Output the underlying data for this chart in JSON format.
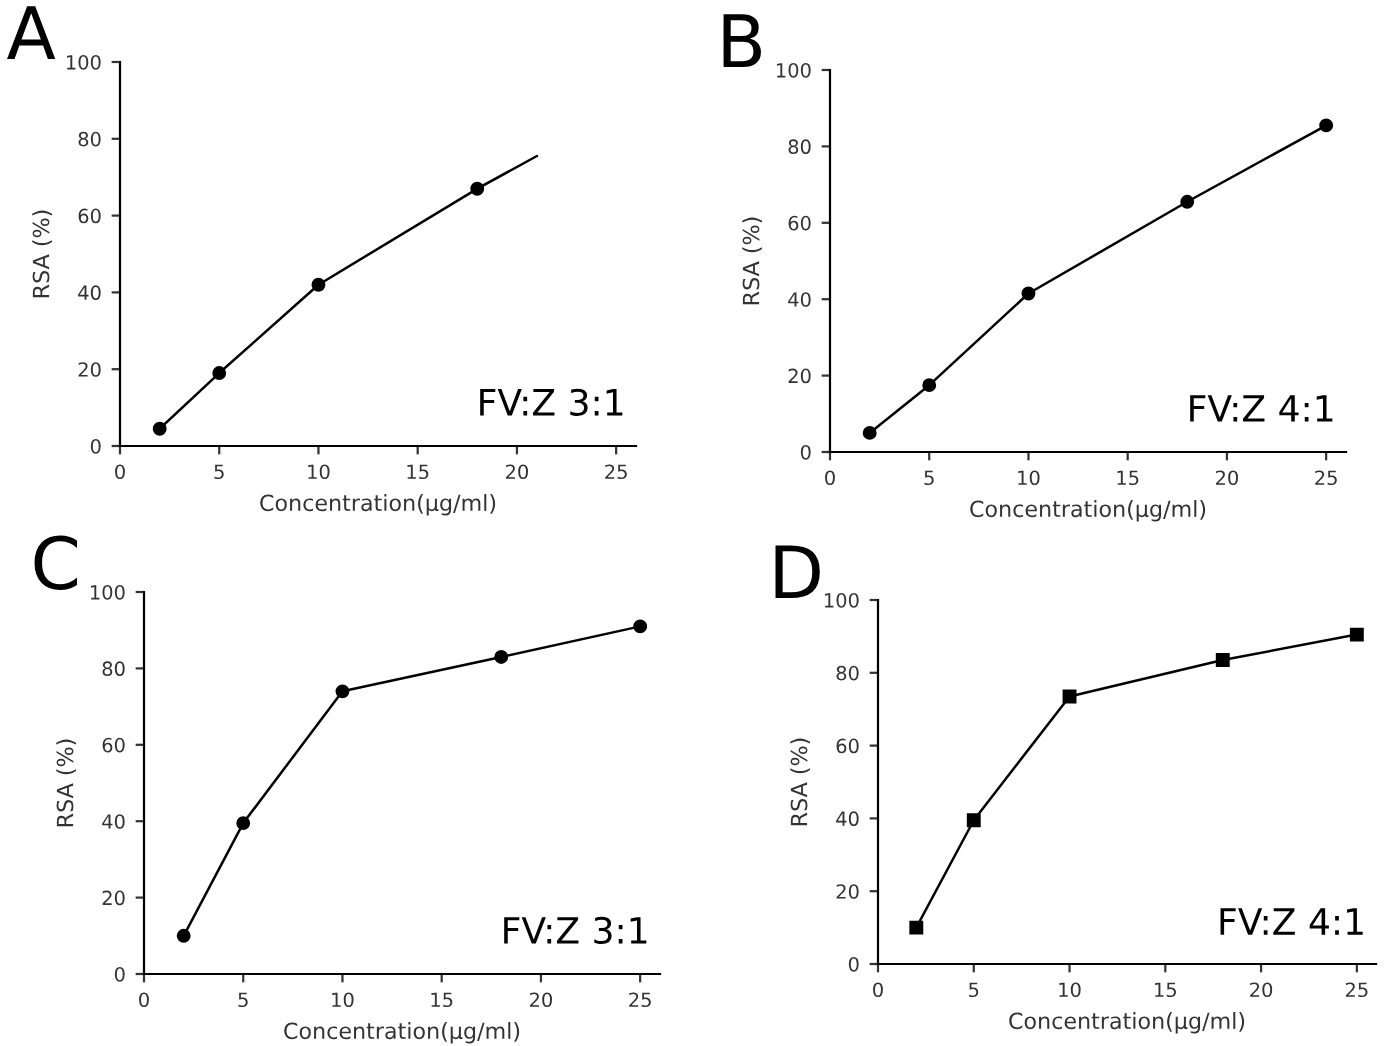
{
  "chart_data": [
    {
      "type": "line",
      "title": "A",
      "xlabel": "Concentration(μg/ml)",
      "ylabel": "RSA (%)",
      "annotations": [
        "FV:Z 3:1"
      ],
      "xlim": [
        0,
        26
      ],
      "ylim": [
        0,
        100
      ],
      "xticks": [
        0,
        5,
        10,
        15,
        20,
        25
      ],
      "yticks": [
        0,
        20,
        40,
        60,
        80,
        100
      ],
      "marker": "circle",
      "grid": false,
      "series": [
        {
          "color": "#000000",
          "x": [
            2,
            5,
            10,
            18
          ],
          "values": [
            4.5,
            19,
            42,
            67
          ]
        },
        {
          "color": "#000000",
          "x": [
            18,
            21
          ],
          "values": [
            67,
            75.5
          ],
          "marker": "none"
        }
      ]
    },
    {
      "type": "line",
      "title": "B",
      "xlabel": "Concentration(μg/ml)",
      "ylabel": "RSA (%)",
      "annotations": [
        "FV:Z 4:1"
      ],
      "xlim": [
        0,
        26
      ],
      "ylim": [
        0,
        100
      ],
      "xticks": [
        0,
        5,
        10,
        15,
        20,
        25
      ],
      "yticks": [
        0,
        20,
        40,
        60,
        80,
        100
      ],
      "marker": "circle",
      "grid": false,
      "series": [
        {
          "color": "#000000",
          "x": [
            2,
            5,
            10,
            18,
            25
          ],
          "values": [
            5,
            17.5,
            41.5,
            65.5,
            85.5
          ]
        }
      ]
    },
    {
      "type": "line",
      "title": "C",
      "xlabel": "Concentration(μg/ml)",
      "ylabel": "RSA (%)",
      "annotations": [
        "FV:Z 3:1"
      ],
      "xlim": [
        0,
        26
      ],
      "ylim": [
        0,
        100
      ],
      "xticks": [
        0,
        5,
        10,
        15,
        20,
        25
      ],
      "yticks": [
        0,
        20,
        40,
        60,
        80,
        100
      ],
      "marker": "circle",
      "grid": false,
      "series": [
        {
          "color": "#000000",
          "x": [
            2,
            5,
            10,
            18,
            25
          ],
          "values": [
            10,
            39.5,
            74,
            83,
            91
          ]
        }
      ]
    },
    {
      "type": "line",
      "title": "D",
      "xlabel": "Concentration(μg/ml)",
      "ylabel": "RSA (%)",
      "annotations": [
        "FV:Z 4:1"
      ],
      "xlim": [
        0,
        26
      ],
      "ylim": [
        0,
        100
      ],
      "xticks": [
        0,
        5,
        10,
        15,
        20,
        25
      ],
      "yticks": [
        0,
        20,
        40,
        60,
        80,
        100
      ],
      "marker": "square",
      "grid": false,
      "series": [
        {
          "color": "#000000",
          "x": [
            2,
            5,
            10,
            18,
            25
          ],
          "values": [
            10,
            39.5,
            73.5,
            83.5,
            90.5
          ]
        }
      ]
    }
  ]
}
